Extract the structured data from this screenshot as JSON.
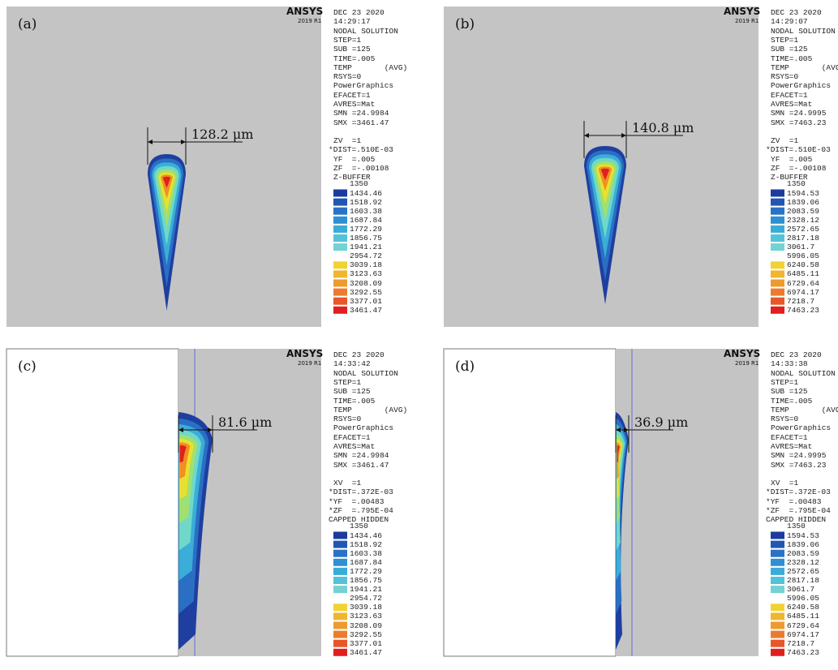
{
  "panels": [
    {
      "label": "(a)",
      "logo": "ANSYS",
      "version": "2019 R1",
      "measurement": "128.2 μm",
      "info": [
        "DEC 23 2020",
        "14:29:17",
        "NODAL SOLUTION",
        "STEP=1",
        "SUB =125",
        "TIME=.005",
        "TEMP       (AVG)",
        "RSYS=0",
        "PowerGraphics",
        "EFACET=1",
        "AVRES=Mat",
        "SMN =24.9984",
        "SMX =3461.47"
      ],
      "view": [
        "ZV  =1",
        "*DIST=.510E-03",
        "YF  =.005",
        "ZF  =-.00108",
        "Z-BUFFER"
      ],
      "legend": [
        "1350",
        "1434.46",
        "1518.92",
        "1603.38",
        "1687.84",
        "1772.29",
        "1856.75",
        "1941.21",
        "2954.72",
        "3039.18",
        "3123.63",
        "3208.09",
        "3292.55",
        "3377.01",
        "3461.47"
      ]
    },
    {
      "label": "(b)",
      "logo": "ANSYS",
      "version": "2019 R1",
      "measurement": "140.8 μm",
      "info": [
        "DEC 23 2020",
        "14:29:07",
        "NODAL SOLUTION",
        "STEP=1",
        "SUB =125",
        "TIME=.005",
        "TEMP       (AVG)",
        "RSYS=0",
        "PowerGraphics",
        "EFACET=1",
        "AVRES=Mat",
        "SMN =24.9995",
        "SMX =7463.23"
      ],
      "view": [
        "ZV  =1",
        "*DIST=.510E-03",
        "YF  =.005",
        "ZF  =-.00108",
        "Z-BUFFER"
      ],
      "legend": [
        "1350",
        "1594.53",
        "1839.06",
        "2083.59",
        "2328.12",
        "2572.65",
        "2817.18",
        "3061.7",
        "5996.05",
        "6240.58",
        "6485.11",
        "6729.64",
        "6974.17",
        "7218.7",
        "7463.23"
      ]
    },
    {
      "label": "(c)",
      "logo": "ANSYS",
      "version": "2019 R1",
      "measurement": "81.6 μm",
      "info": [
        "DEC 23 2020",
        "14:33:42",
        "NODAL SOLUTION",
        "STEP=1",
        "SUB =125",
        "TIME=.005",
        "TEMP       (AVG)",
        "RSYS=0",
        "PowerGraphics",
        "EFACET=1",
        "AVRES=Mat",
        "SMN =24.9984",
        "SMX =3461.47"
      ],
      "view": [
        "XV  =1",
        "*DIST=.372E-03",
        "*YF  =.00483",
        "*ZF  =.795E-04",
        "CAPPED HIDDEN"
      ],
      "legend": [
        "1350",
        "1434.46",
        "1518.92",
        "1603.38",
        "1687.84",
        "1772.29",
        "1856.75",
        "1941.21",
        "2954.72",
        "3039.18",
        "3123.63",
        "3208.09",
        "3292.55",
        "3377.01",
        "3461.47"
      ]
    },
    {
      "label": "(d)",
      "logo": "ANSYS",
      "version": "2019 R1",
      "measurement": "36.9 μm",
      "info": [
        "DEC 23 2020",
        "14:33:38",
        "NODAL SOLUTION",
        "STEP=1",
        "SUB =125",
        "TIME=.005",
        "TEMP       (AVG)",
        "RSYS=0",
        "PowerGraphics",
        "EFACET=1",
        "AVRES=Mat",
        "SMN =24.9995",
        "SMX =7463.23"
      ],
      "view": [
        "XV  =1",
        "*DIST=.372E-03",
        "*YF  =.00483",
        "*ZF  =.795E-04",
        "CAPPED HIDDEN"
      ],
      "legend": [
        "1350",
        "1594.53",
        "1839.06",
        "2083.59",
        "2328.12",
        "2572.65",
        "2817.18",
        "3061.7",
        "5996.05",
        "6240.58",
        "6485.11",
        "6729.64",
        "6974.17",
        "7218.7",
        "7463.23"
      ]
    }
  ]
}
